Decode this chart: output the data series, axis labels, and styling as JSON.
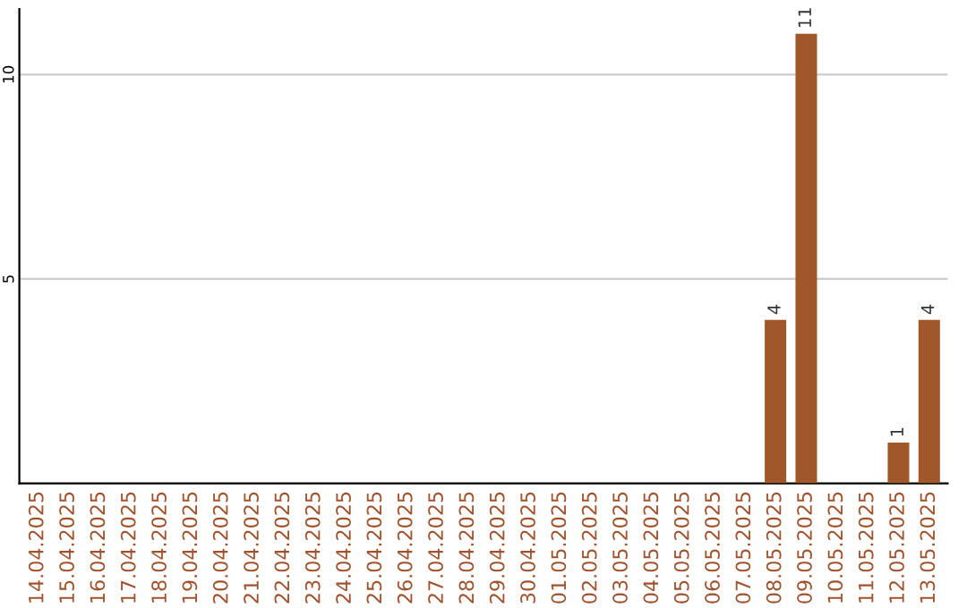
{
  "chart_data": {
    "type": "bar",
    "categories": [
      "14.04.2025",
      "15.04.2025",
      "16.04.2025",
      "17.04.2025",
      "18.04.2025",
      "19.04.2025",
      "20.04.2025",
      "21.04.2025",
      "22.04.2025",
      "23.04.2025",
      "24.04.2025",
      "25.04.2025",
      "26.04.2025",
      "27.04.2025",
      "28.04.2025",
      "29.04.2025",
      "30.04.2025",
      "01.05.2025",
      "02.05.2025",
      "03.05.2025",
      "04.05.2025",
      "05.05.2025",
      "06.05.2025",
      "07.05.2025",
      "08.05.2025",
      "09.05.2025",
      "10.05.2025",
      "11.05.2025",
      "12.05.2025",
      "13.05.2025"
    ],
    "values": [
      0,
      0,
      0,
      0,
      0,
      0,
      0,
      0,
      0,
      0,
      0,
      0,
      0,
      0,
      0,
      0,
      0,
      0,
      0,
      0,
      0,
      0,
      0,
      0,
      4,
      11,
      0,
      0,
      1,
      4
    ],
    "value_labels": [
      null,
      null,
      null,
      null,
      null,
      null,
      null,
      null,
      null,
      null,
      null,
      null,
      null,
      null,
      null,
      null,
      null,
      null,
      null,
      null,
      null,
      null,
      null,
      null,
      "4",
      "11",
      null,
      null,
      "1",
      "4"
    ],
    "color": "#a0582a",
    "ylim": [
      0,
      11.6
    ],
    "yticks": [
      5,
      10
    ],
    "grid": "y"
  }
}
